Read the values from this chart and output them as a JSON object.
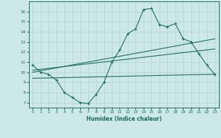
{
  "xlabel": "Humidex (Indice chaleur)",
  "bg_color": "#cce8e8",
  "grid_color": "#b8d8d8",
  "line_color": "#1a6b5a",
  "line1_x": [
    0,
    1,
    2,
    3,
    4,
    5,
    6,
    7,
    8,
    9,
    10,
    11,
    12,
    13,
    14,
    15,
    16,
    17,
    18,
    19,
    20,
    21,
    22,
    23
  ],
  "line1_y": [
    10.7,
    10.0,
    9.8,
    9.2,
    8.0,
    7.5,
    7.0,
    6.9,
    7.8,
    9.0,
    11.0,
    12.2,
    13.8,
    14.3,
    16.2,
    16.3,
    14.7,
    14.5,
    14.8,
    13.3,
    13.0,
    11.8,
    10.7,
    9.8
  ],
  "line2_x": [
    0,
    23
  ],
  "line2_y": [
    10.0,
    13.3
  ],
  "line3_x": [
    0,
    23
  ],
  "line3_y": [
    10.2,
    12.3
  ],
  "line4_x": [
    0,
    23
  ],
  "line4_y": [
    9.4,
    9.8
  ],
  "xlim": [
    -0.5,
    23.5
  ],
  "ylim": [
    6.5,
    17.0
  ],
  "yticks": [
    7,
    8,
    9,
    10,
    11,
    12,
    13,
    14,
    15,
    16
  ],
  "xticks": [
    0,
    1,
    2,
    3,
    4,
    5,
    6,
    7,
    8,
    9,
    10,
    11,
    12,
    13,
    14,
    15,
    16,
    17,
    18,
    19,
    20,
    21,
    22,
    23
  ]
}
